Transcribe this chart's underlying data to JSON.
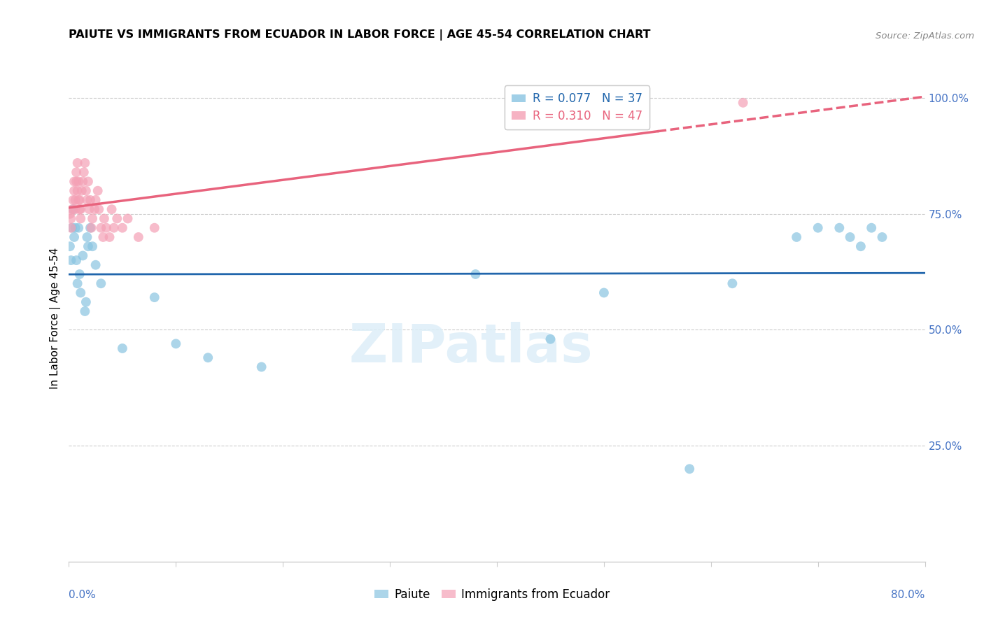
{
  "title": "PAIUTE VS IMMIGRANTS FROM ECUADOR IN LABOR FORCE | AGE 45-54 CORRELATION CHART",
  "source": "Source: ZipAtlas.com",
  "ylabel": "In Labor Force | Age 45-54",
  "ytick_labels": [
    "",
    "25.0%",
    "50.0%",
    "75.0%",
    "100.0%"
  ],
  "ytick_vals": [
    0.0,
    0.25,
    0.5,
    0.75,
    1.0
  ],
  "paiute_color": "#89c4e1",
  "ecuador_color": "#f4a0b5",
  "paiute_line_color": "#2166ac",
  "ecuador_line_color": "#e8637d",
  "watermark_text": "ZIPatlas",
  "legend_label1": "R = 0.077   N = 37",
  "legend_label2": "R = 0.310   N = 47",
  "legend_color1": "#2166ac",
  "legend_color2": "#e8637d",
  "xmin": 0.0,
  "xmax": 0.8,
  "ymin": 0.0,
  "ymax": 1.05,
  "paiute_x": [
    0.001,
    0.002,
    0.003,
    0.004,
    0.005,
    0.006,
    0.007,
    0.008,
    0.009,
    0.01,
    0.011,
    0.013,
    0.015,
    0.016,
    0.017,
    0.018,
    0.02,
    0.022,
    0.025,
    0.03,
    0.05,
    0.08,
    0.1,
    0.13,
    0.18,
    0.38,
    0.45,
    0.5,
    0.58,
    0.62,
    0.68,
    0.7,
    0.72,
    0.73,
    0.74,
    0.75,
    0.76
  ],
  "paiute_y": [
    0.68,
    0.65,
    0.72,
    0.76,
    0.7,
    0.72,
    0.65,
    0.6,
    0.72,
    0.62,
    0.58,
    0.66,
    0.54,
    0.56,
    0.7,
    0.68,
    0.72,
    0.68,
    0.64,
    0.6,
    0.46,
    0.57,
    0.47,
    0.44,
    0.42,
    0.62,
    0.48,
    0.58,
    0.2,
    0.6,
    0.7,
    0.72,
    0.72,
    0.7,
    0.68,
    0.72,
    0.7
  ],
  "ecuador_x": [
    0.001,
    0.002,
    0.002,
    0.003,
    0.004,
    0.005,
    0.005,
    0.006,
    0.006,
    0.007,
    0.007,
    0.008,
    0.008,
    0.009,
    0.009,
    0.01,
    0.01,
    0.011,
    0.011,
    0.012,
    0.013,
    0.014,
    0.015,
    0.016,
    0.017,
    0.018,
    0.019,
    0.02,
    0.021,
    0.022,
    0.024,
    0.025,
    0.027,
    0.028,
    0.03,
    0.032,
    0.033,
    0.035,
    0.038,
    0.04,
    0.042,
    0.045,
    0.05,
    0.055,
    0.065,
    0.08,
    0.63
  ],
  "ecuador_y": [
    0.75,
    0.72,
    0.74,
    0.76,
    0.78,
    0.8,
    0.82,
    0.76,
    0.78,
    0.82,
    0.84,
    0.86,
    0.8,
    0.78,
    0.82,
    0.76,
    0.78,
    0.74,
    0.76,
    0.8,
    0.82,
    0.84,
    0.86,
    0.8,
    0.78,
    0.82,
    0.76,
    0.78,
    0.72,
    0.74,
    0.76,
    0.78,
    0.8,
    0.76,
    0.72,
    0.7,
    0.74,
    0.72,
    0.7,
    0.76,
    0.72,
    0.74,
    0.72,
    0.74,
    0.7,
    0.72,
    0.99
  ]
}
